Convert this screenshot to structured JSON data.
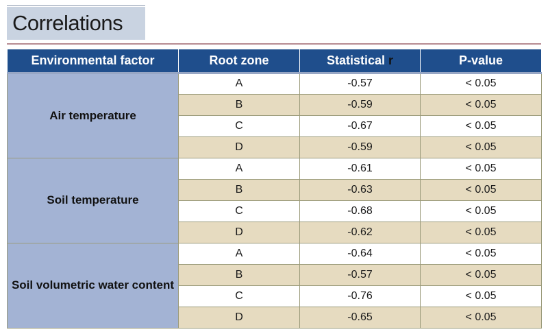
{
  "title": "Correlations",
  "table": {
    "headers": {
      "factor": "Environmental factor",
      "zone": "Root zone",
      "stat": "Statistical",
      "stat_r": "r",
      "p": "P-value"
    },
    "groups": [
      {
        "factor": "Air temperature",
        "rows": [
          {
            "zone": "A",
            "r": "-0.57",
            "p": "< 0.05"
          },
          {
            "zone": "B",
            "r": "-0.59",
            "p": "< 0.05"
          },
          {
            "zone": "C",
            "r": "-0.67",
            "p": "< 0.05"
          },
          {
            "zone": "D",
            "r": "-0.59",
            "p": "< 0.05"
          }
        ]
      },
      {
        "factor": "Soil temperature",
        "rows": [
          {
            "zone": "A",
            "r": "-0.61",
            "p": "< 0.05"
          },
          {
            "zone": "B",
            "r": "-0.63",
            "p": "< 0.05"
          },
          {
            "zone": "C",
            "r": "-0.68",
            "p": "< 0.05"
          },
          {
            "zone": "D",
            "r": "-0.62",
            "p": "< 0.05"
          }
        ]
      },
      {
        "factor": "Soil volumetric water content",
        "rows": [
          {
            "zone": "A",
            "r": "-0.64",
            "p": "< 0.05"
          },
          {
            "zone": "B",
            "r": "-0.57",
            "p": "< 0.05"
          },
          {
            "zone": "C",
            "r": "-0.76",
            "p": "< 0.05"
          },
          {
            "zone": "D",
            "r": "-0.65",
            "p": "< 0.05"
          }
        ]
      }
    ]
  }
}
